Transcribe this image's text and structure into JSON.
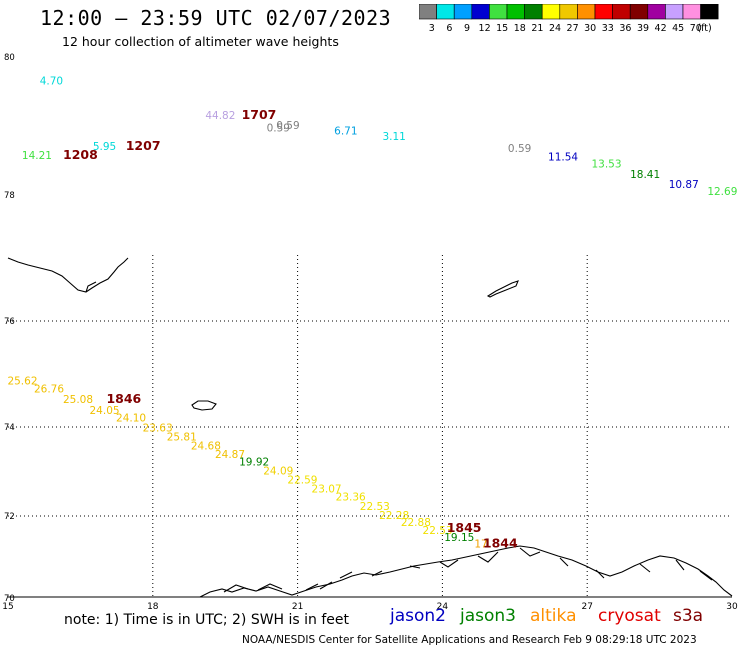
{
  "title": "12:00 — 23:59 UTC 02/07/2023",
  "subtitle": "12 hour collection of altimeter wave heights",
  "legend": {
    "unit_label": "(ft)",
    "bins": [
      {
        "label": "3",
        "color": "#808080"
      },
      {
        "label": "6",
        "color": "#00e8e8"
      },
      {
        "label": "9",
        "color": "#00a0ff"
      },
      {
        "label": "12",
        "color": "#0000d0"
      },
      {
        "label": "15",
        "color": "#40e040"
      },
      {
        "label": "18",
        "color": "#00c000"
      },
      {
        "label": "21",
        "color": "#008000"
      },
      {
        "label": "24",
        "color": "#ffff00"
      },
      {
        "label": "27",
        "color": "#f0c800"
      },
      {
        "label": "30",
        "color": "#ff9000"
      },
      {
        "label": "33",
        "color": "#ff0000"
      },
      {
        "label": "36",
        "color": "#c00000"
      },
      {
        "label": "39",
        "color": "#800000"
      },
      {
        "label": "42",
        "color": "#a000a0"
      },
      {
        "label": "45",
        "color": "#c8a0ff"
      },
      {
        "label": "70",
        "color": "#ff90e0"
      },
      {
        "label": "",
        "color": "#000000"
      }
    ]
  },
  "axes": {
    "x_ticks": [
      "15",
      "18",
      "21",
      "24",
      "27",
      "30"
    ],
    "y_ticks": [
      "80",
      "78",
      "76",
      "74",
      "72",
      "70"
    ]
  },
  "readings": [
    {
      "text": "4.70",
      "lon": 15.9,
      "lat": 79.6,
      "color": "#00d8d8"
    },
    {
      "text": "44.82",
      "lon": 19.4,
      "lat": 79.1,
      "color": "#b8a0e0"
    },
    {
      "text": "1707",
      "lon": 20.2,
      "lat": 79.1,
      "color": "#800000",
      "bold": true
    },
    {
      "text": "0.59",
      "lon": 20.8,
      "lat": 78.96,
      "color": "#808080"
    },
    {
      "text": "0.59",
      "lon": 20.6,
      "lat": 78.92,
      "color": "#808080"
    },
    {
      "text": "6.71",
      "lon": 22.0,
      "lat": 78.88,
      "color": "#00a0e0"
    },
    {
      "text": "3.11",
      "lon": 23.0,
      "lat": 78.8,
      "color": "#00d8d8"
    },
    {
      "text": "5.95",
      "lon": 17.0,
      "lat": 78.65,
      "color": "#00d8d8"
    },
    {
      "text": "1207",
      "lon": 17.8,
      "lat": 78.65,
      "color": "#800000",
      "bold": true
    },
    {
      "text": "14.21",
      "lon": 15.6,
      "lat": 78.52,
      "color": "#40e040"
    },
    {
      "text": "1208",
      "lon": 16.5,
      "lat": 78.52,
      "color": "#800000",
      "bold": true
    },
    {
      "text": "0.59",
      "lon": 25.6,
      "lat": 78.62,
      "color": "#808080"
    },
    {
      "text": "11.54",
      "lon": 26.5,
      "lat": 78.5,
      "color": "#0000c0"
    },
    {
      "text": "13.53",
      "lon": 27.4,
      "lat": 78.4,
      "color": "#40e040"
    },
    {
      "text": "18.41",
      "lon": 28.2,
      "lat": 78.25,
      "color": "#008000"
    },
    {
      "text": "10.87",
      "lon": 29.0,
      "lat": 78.1,
      "color": "#0000c0"
    },
    {
      "text": "12.69",
      "lon": 29.8,
      "lat": 78.0,
      "color": "#40e040"
    },
    {
      "text": "25.62",
      "lon": 15.3,
      "lat": 74.8,
      "color": "#f0c000"
    },
    {
      "text": "26.76",
      "lon": 15.85,
      "lat": 74.65,
      "color": "#f0c000"
    },
    {
      "text": "25.08",
      "lon": 16.45,
      "lat": 74.45,
      "color": "#f0c000"
    },
    {
      "text": "1846",
      "lon": 17.4,
      "lat": 74.45,
      "color": "#800000",
      "bold": true
    },
    {
      "text": "24.05",
      "lon": 17.0,
      "lat": 74.25,
      "color": "#f0c000"
    },
    {
      "text": "24.10",
      "lon": 17.55,
      "lat": 74.1,
      "color": "#f0c000"
    },
    {
      "text": "23.63",
      "lon": 18.1,
      "lat": 73.9,
      "color": "#f0c000"
    },
    {
      "text": "25.81",
      "lon": 18.6,
      "lat": 73.7,
      "color": "#f0c000"
    },
    {
      "text": "24.68",
      "lon": 19.1,
      "lat": 73.5,
      "color": "#f0c000"
    },
    {
      "text": "24.87",
      "lon": 19.6,
      "lat": 73.3,
      "color": "#f0c000"
    },
    {
      "text": "19.92",
      "lon": 20.1,
      "lat": 73.13,
      "color": "#008000"
    },
    {
      "text": "24.09",
      "lon": 20.6,
      "lat": 72.93,
      "color": "#f0d000"
    },
    {
      "text": "22.59",
      "lon": 21.1,
      "lat": 72.73,
      "color": "#f0e000"
    },
    {
      "text": "23.07",
      "lon": 21.6,
      "lat": 72.53,
      "color": "#f0e000"
    },
    {
      "text": "23.36",
      "lon": 22.1,
      "lat": 72.35,
      "color": "#f0e000"
    },
    {
      "text": "22.53",
      "lon": 22.6,
      "lat": 72.13,
      "color": "#f0e000"
    },
    {
      "text": "22.28",
      "lon": 23.0,
      "lat": 71.93,
      "color": "#f0e000"
    },
    {
      "text": "22.88",
      "lon": 23.45,
      "lat": 71.75,
      "color": "#f0e000"
    },
    {
      "text": "22.53",
      "lon": 23.9,
      "lat": 71.56,
      "color": "#f0e000"
    },
    {
      "text": "1845",
      "lon": 24.45,
      "lat": 71.6,
      "color": "#800000",
      "bold": true
    },
    {
      "text": "19.15",
      "lon": 24.35,
      "lat": 71.38,
      "color": "#008000"
    },
    {
      "text": "17",
      "lon": 24.8,
      "lat": 71.22,
      "color": "#f0a000"
    },
    {
      "text": "1844",
      "lon": 25.2,
      "lat": 71.22,
      "color": "#800000",
      "bold": true
    }
  ],
  "footer": {
    "note": "note: 1) Time is in UTC; 2) SWH is in feet",
    "satellites": [
      {
        "name": "jason2",
        "color": "#0000c0"
      },
      {
        "name": "jason3",
        "color": "#008000"
      },
      {
        "name": "altika",
        "color": "#ff9000"
      },
      {
        "name": "cryosat",
        "color": "#e00000"
      },
      {
        "name": "s3a",
        "color": "#800000"
      }
    ],
    "credit": "NOAA/NESDIS Center for Satellite Applications and Research   Feb  9 08:29:18 UTC 2023"
  }
}
